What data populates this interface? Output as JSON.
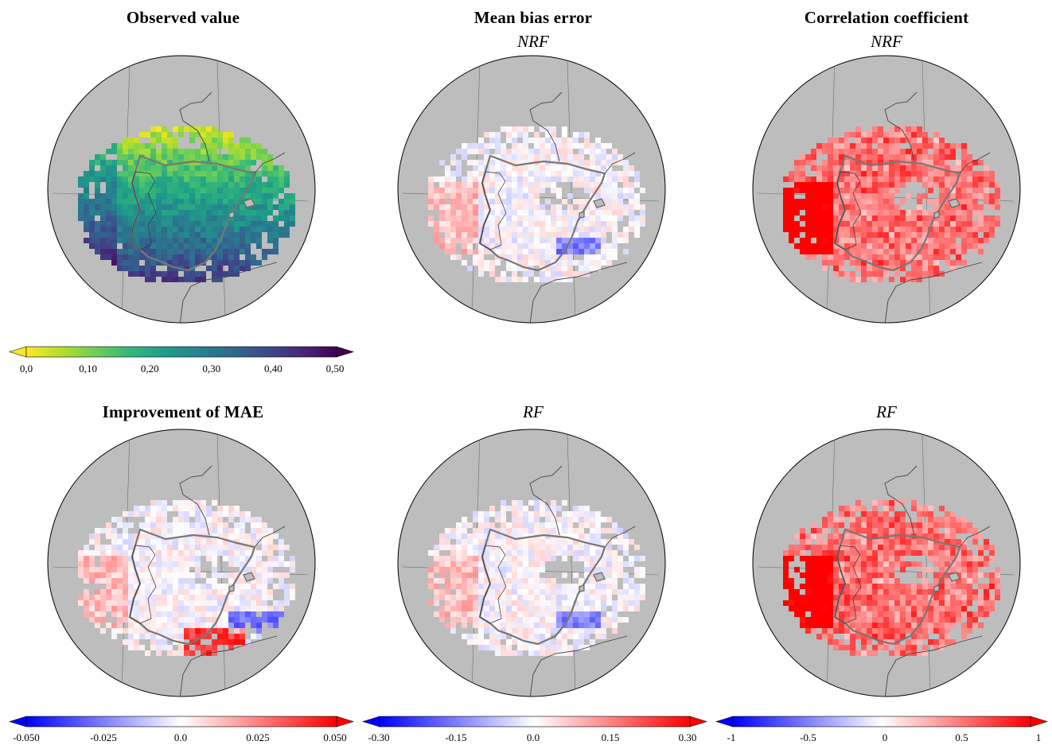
{
  "panels": {
    "observed": {
      "title": "Observed value",
      "subtitle": ""
    },
    "mbe_nrf": {
      "title": "Mean bias error",
      "subtitle": "NRF"
    },
    "cc_nrf": {
      "title": "Correlation coefficient",
      "subtitle": "NRF"
    },
    "mae": {
      "title": "Improvement of MAE",
      "subtitle": ""
    },
    "mbe_rf": {
      "title": "",
      "subtitle": "RF"
    },
    "cc_rf": {
      "title": "",
      "subtitle": "RF"
    }
  },
  "colorbars": {
    "observed": {
      "ticks": [
        "0,0",
        "0,10",
        "0,20",
        "0,30",
        "0,40",
        "0,50"
      ],
      "range": [
        0,
        0.5
      ]
    },
    "mae": {
      "ticks": [
        "-0.050",
        "-0.025",
        "0.0",
        "0.025",
        "0.050"
      ],
      "range": [
        -0.05,
        0.05
      ]
    },
    "mbe": {
      "ticks": [
        "-0.30",
        "-0.15",
        "0.0",
        "0.15",
        "0.30"
      ],
      "range": [
        -0.3,
        0.3
      ]
    },
    "cc": {
      "ticks": [
        "-1",
        "-0.5",
        "0",
        "0.5",
        "1"
      ],
      "range": [
        -1,
        1
      ]
    }
  },
  "colors": {
    "land": "#bdbdbd",
    "viridis": [
      "#fde725",
      "#b5de2b",
      "#6ece58",
      "#35b779",
      "#1f9e89",
      "#26828e",
      "#31688e",
      "#3e4989",
      "#482878",
      "#440154"
    ],
    "diverging": [
      "#0000ff",
      "#ffffff",
      "#ff0000"
    ]
  }
}
